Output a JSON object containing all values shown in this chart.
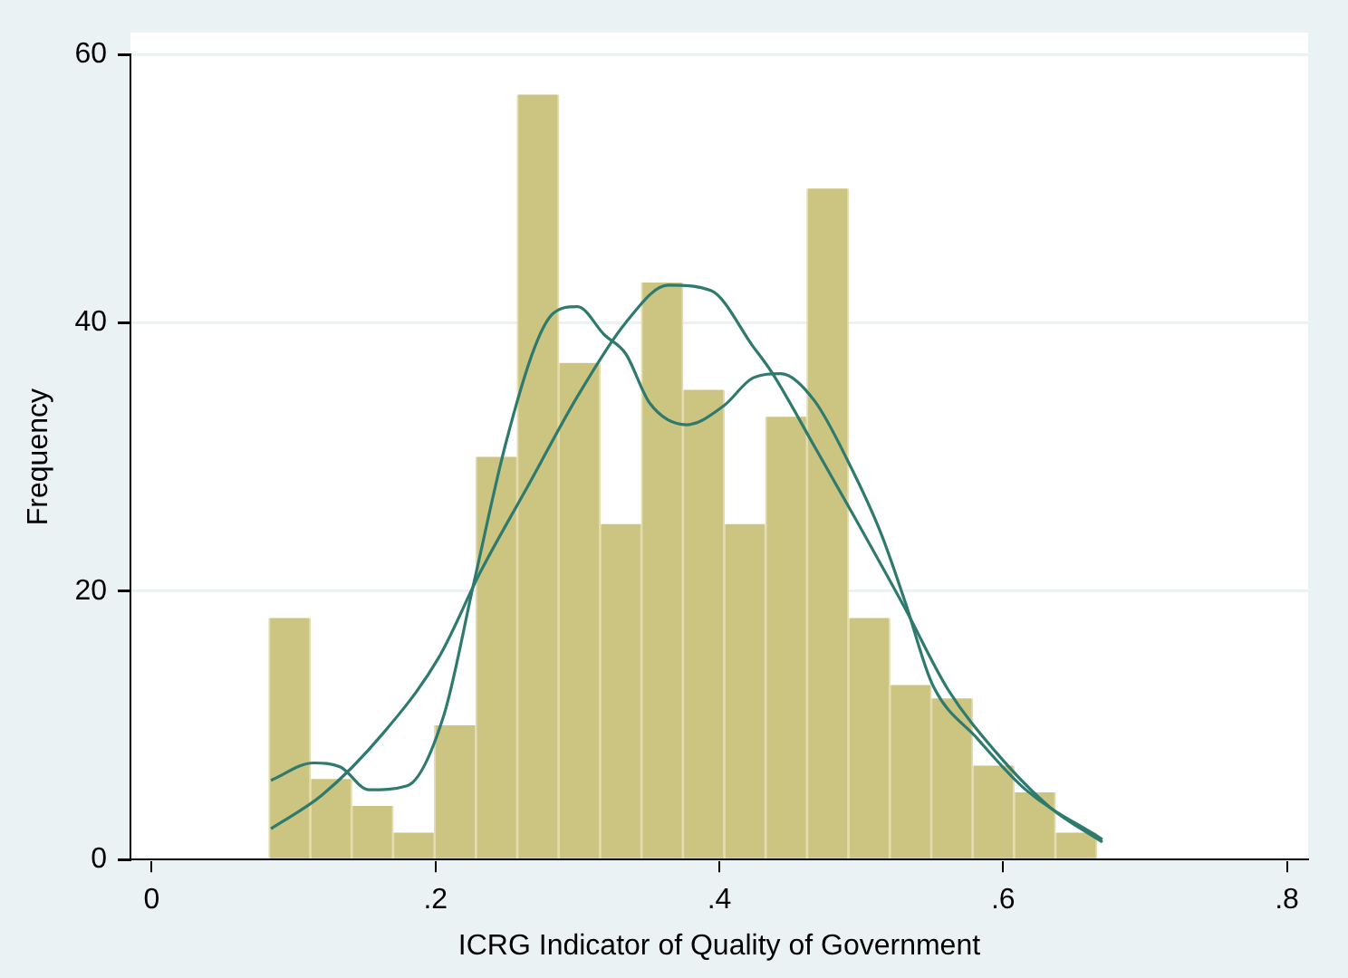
{
  "chart_data": {
    "type": "histogram",
    "xlabel": "ICRG Indicator of Quality of Government",
    "ylabel": "Frequency",
    "bins": [
      0.0826,
      0.1118,
      0.1409,
      0.1701,
      0.1993,
      0.2285,
      0.2576,
      0.2868,
      0.316,
      0.3452,
      0.3743,
      0.4035,
      0.4327,
      0.4618,
      0.491,
      0.5202,
      0.5494,
      0.5785,
      0.6077,
      0.6369,
      0.666
    ],
    "values": [
      18,
      6,
      4,
      2,
      10,
      30,
      57,
      37,
      25,
      43,
      35,
      25,
      33,
      50,
      18,
      13,
      12,
      7,
      5,
      2
    ],
    "color": "#ccc481",
    "series": [
      {
        "type": "line",
        "color": "#2e7a6e",
        "x": [
          0.084,
          0.12,
          0.163,
          0.202,
          0.232,
          0.266,
          0.3,
          0.334,
          0.364,
          0.394,
          0.424,
          0.437,
          0.467,
          0.497,
          0.531,
          0.561,
          0.595,
          0.633,
          0.67
        ],
        "values": [
          2.3,
          4.8,
          9.4,
          15,
          21.5,
          28,
          34.5,
          40,
          42.8,
          42.4,
          38.2,
          36.3,
          30.8,
          25.2,
          18.7,
          12.7,
          8,
          3.9,
          1.3
        ]
      },
      {
        "type": "line",
        "color": "#2e7a6e",
        "x": [
          0.084,
          0.114,
          0.133,
          0.153,
          0.18,
          0.206,
          0.227,
          0.249,
          0.27,
          0.283,
          0.3,
          0.319,
          0.334,
          0.351,
          0.377,
          0.403,
          0.424,
          0.443,
          0.467,
          0.492,
          0.514,
          0.531,
          0.55,
          0.582,
          0.616,
          0.67
        ],
        "values": [
          5.9,
          7.2,
          6.9,
          5.2,
          5.5,
          10.8,
          20.6,
          30.8,
          38.2,
          40.7,
          41.2,
          39.1,
          37.7,
          34,
          32.4,
          33.8,
          35.9,
          36.2,
          34.2,
          29.4,
          24.3,
          19.2,
          13.1,
          9,
          5.2,
          1.5
        ]
      }
    ],
    "xlim": [
      -0.015,
      0.815
    ],
    "ylim": [
      0,
      60
    ],
    "xticks": [
      0,
      {
        "value": 0.2,
        "label": ".2"
      },
      {
        "value": 0.4,
        "label": ".4"
      },
      {
        "value": 0.6,
        "label": ".6"
      },
      {
        "value": 0.8,
        "label": ".8"
      }
    ],
    "yticks": [
      0,
      20,
      40,
      60
    ],
    "grid": "y",
    "legend": false,
    "marker": "none",
    "line_style": "solid"
  }
}
